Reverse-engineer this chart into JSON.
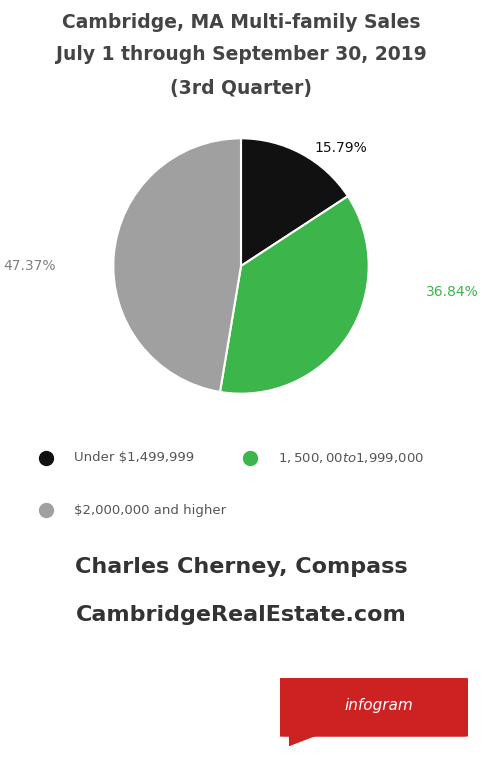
{
  "title_line1": "Cambridge, MA Multi-family Sales",
  "title_line2": "July 1 through September 30, 2019",
  "title_line3": "(3rd Quarter)",
  "slices": [
    15.79,
    36.84,
    47.37
  ],
  "slice_labels": [
    "15.79%",
    "36.84%",
    "47.37%"
  ],
  "slice_colors": [
    "#111111",
    "#3cb54a",
    "#a0a0a0"
  ],
  "legend_labels": [
    "Under $1,499,999",
    "$1,500,00 to $1,999,000",
    "$2,000,000 and higher"
  ],
  "legend_colors": [
    "#111111",
    "#3cb54a",
    "#a0a0a0"
  ],
  "credit_line1": "Charles Cherney, Compass",
  "credit_line2": "CambridgeRealEstate.com",
  "background_color": "#ffffff",
  "title_color": "#444444",
  "credit_color": "#333333",
  "legend_color": "#555555",
  "infogram_bg": "#cc2222",
  "infogram_text": "infogram"
}
